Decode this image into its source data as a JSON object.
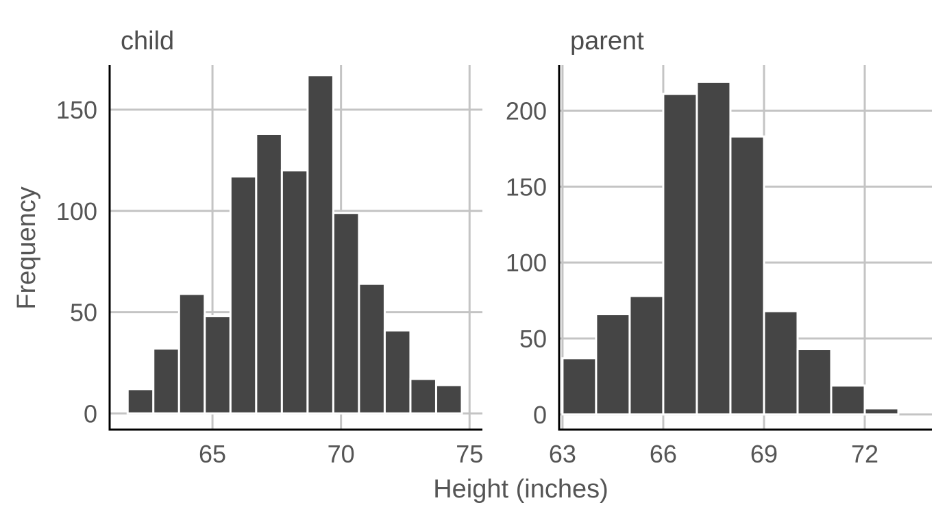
{
  "axis_titles": {
    "x": "Height (inches)",
    "y": "Frequency"
  },
  "colors": {
    "bar_fill": "#454545",
    "bar_outline": "#ffffff",
    "grid": "#c4c4c4",
    "axis": "#000000",
    "text": "#555555"
  },
  "chart_data": [
    {
      "type": "bar",
      "title": "child",
      "xlabel": "Height (inches)",
      "ylabel": "Frequency",
      "grid": true,
      "xlim": [
        61.0,
        75.5
      ],
      "ylim": [
        -8,
        172
      ],
      "x_ticks": [
        65,
        70,
        75
      ],
      "y_ticks": [
        0,
        50,
        100,
        150
      ],
      "bin_width": 1,
      "bin_centers": [
        62.2,
        63.2,
        64.2,
        65.2,
        66.2,
        67.2,
        68.2,
        69.2,
        70.2,
        71.2,
        72.2,
        73.2,
        74.2
      ],
      "values": [
        12,
        32,
        59,
        48,
        117,
        138,
        120,
        167,
        99,
        64,
        41,
        17,
        14
      ]
    },
    {
      "type": "bar",
      "title": "parent",
      "xlabel": "Height (inches)",
      "ylabel": "Frequency",
      "grid": true,
      "xlim": [
        62.9,
        74.0
      ],
      "ylim": [
        -10,
        230
      ],
      "x_ticks": [
        63,
        66,
        69,
        72
      ],
      "y_ticks": [
        0,
        50,
        100,
        150,
        200
      ],
      "bin_width": 1,
      "bin_centers": [
        63.5,
        64.5,
        65.5,
        66.5,
        67.5,
        68.5,
        69.5,
        70.5,
        71.5,
        72.5
      ],
      "values": [
        37,
        66,
        78,
        211,
        219,
        183,
        68,
        43,
        19,
        4
      ]
    }
  ]
}
